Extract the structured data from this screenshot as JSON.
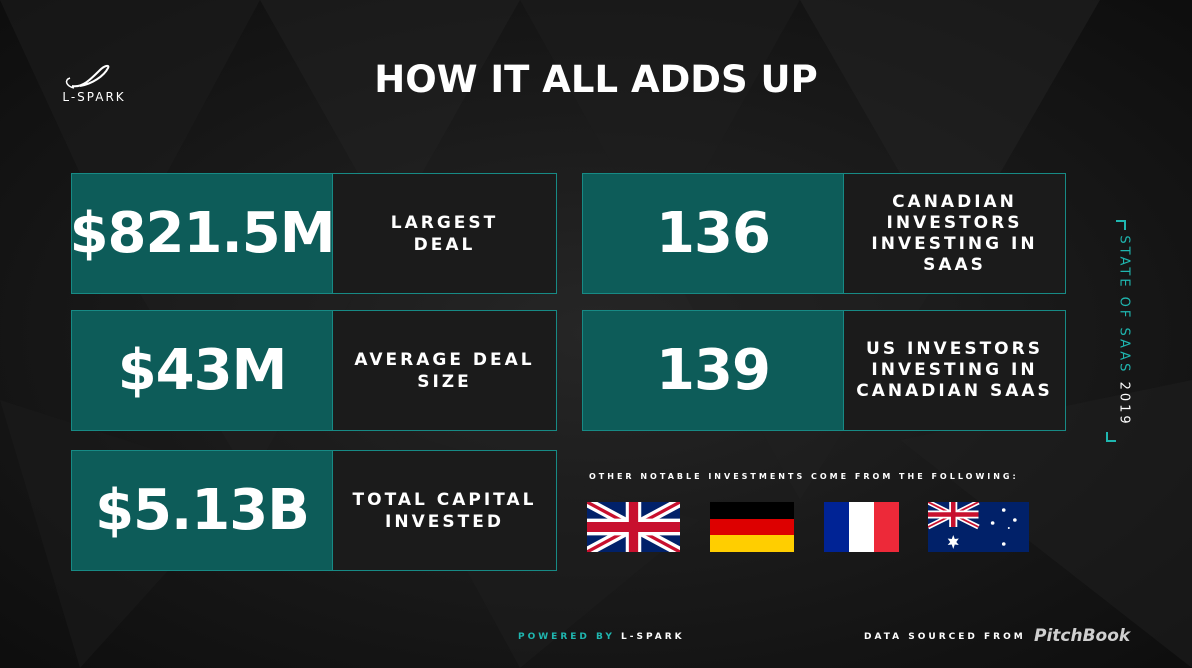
{
  "logo": {
    "text": "L-SPARK",
    "icon": "spark-swoosh-icon"
  },
  "title": "HOW IT ALL ADDS UP",
  "stats_left": [
    {
      "value": "$821.5M",
      "label": "LARGEST\nDEAL"
    },
    {
      "value": "$43M",
      "label": "AVERAGE DEAL\nSIZE"
    },
    {
      "value": "$5.13B",
      "label": "TOTAL CAPITAL\nINVESTED"
    }
  ],
  "stats_right": [
    {
      "value": "136",
      "label": "CANADIAN\nINVESTORS\nINVESTING IN\nSAAS"
    },
    {
      "value": "139",
      "label": "US INVESTORS\nINVESTING IN\nCANADIAN SAAS"
    }
  ],
  "side_label": {
    "text": "STATE OF SAAS ",
    "year": "2019"
  },
  "other_investments": {
    "label": "OTHER NOTABLE INVESTMENTS COME FROM THE FOLLOWING:",
    "flags": [
      "united-kingdom-flag-icon",
      "germany-flag-icon",
      "france-flag-icon",
      "australia-flag-icon"
    ]
  },
  "footer": {
    "powered_by": "POWERED BY",
    "powered_brand": "L-SPARK",
    "sourced_from": "DATA SOURCED FROM",
    "source_brand": "PitchBook"
  },
  "colors": {
    "accent": "#1fb7b0",
    "teal_panel": "#0d5c59",
    "dark_panel": "#1b1b1b",
    "background": "#141414"
  }
}
